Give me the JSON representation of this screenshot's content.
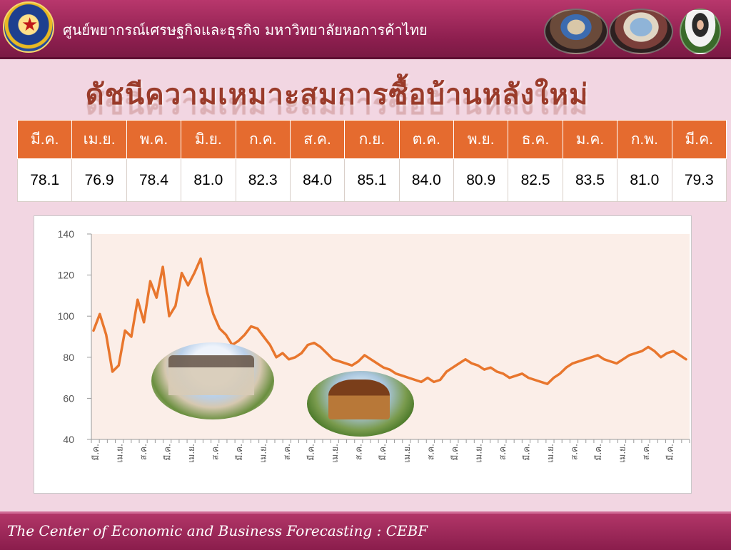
{
  "header": {
    "org_name": "ศูนย์พยากรณ์เศรษฐกิจและธุรกิจ มหาวิทยาลัยหอการค้าไทย"
  },
  "title": "ดัชนีความเหมาะสมการซื้อบ้านหลังใหม่",
  "table": {
    "months": [
      "มี.ค.",
      "เม.ย.",
      "พ.ค.",
      "มิ.ย.",
      "ก.ค.",
      "ส.ค.",
      "ก.ย.",
      "ต.ค.",
      "พ.ย.",
      "ธ.ค.",
      "ม.ค.",
      "ก.พ.",
      "มี.ค."
    ],
    "values": [
      "78.1",
      "76.9",
      "78.4",
      "81.0",
      "82.3",
      "84.0",
      "85.1",
      "84.0",
      "80.9",
      "82.5",
      "83.5",
      "81.0",
      "79.3"
    ]
  },
  "chart_data": {
    "type": "line",
    "ylim": [
      40,
      140
    ],
    "y_ticks": [
      "140",
      "120",
      "100",
      "80",
      "60",
      "40"
    ],
    "x_tick_labels": [
      "มี.ค.",
      "เม.ย.",
      "ส.ค.",
      "มี.ค.",
      "เม.ย.",
      "ส.ค.",
      "มี.ค.",
      "เม.ย.",
      "ส.ค.",
      "มี.ค.",
      "เม.ย.",
      "ส.ค.",
      "มี.ค.",
      "เม.ย.",
      "ส.ค.",
      "มี.ค.",
      "เม.ย.",
      "ส.ค.",
      "มี.ค.",
      "เม.ย.",
      "ส.ค.",
      "มี.ค.",
      "เม.ย.",
      "ส.ค.",
      "มี.ค."
    ],
    "series": [
      {
        "color": "#e8762d",
        "values": [
          93,
          101,
          91,
          73,
          76,
          93,
          90,
          108,
          97,
          117,
          109,
          124,
          100,
          105,
          121,
          115,
          121,
          128,
          112,
          101,
          94,
          91,
          86,
          88,
          91,
          95,
          94,
          90,
          86,
          80,
          82,
          79,
          80,
          82,
          86,
          87,
          85,
          82,
          79,
          78,
          77,
          76,
          78,
          81,
          79,
          77,
          75,
          74,
          72,
          71,
          70,
          69,
          68,
          70,
          68,
          69,
          73,
          75,
          77,
          79,
          77,
          76,
          74,
          75,
          73,
          72,
          70,
          71,
          72,
          70,
          69,
          68,
          67,
          70,
          72,
          75,
          77,
          78,
          79,
          80,
          81,
          79,
          78,
          77,
          79,
          81,
          82,
          83,
          85,
          83,
          80,
          82,
          83,
          81,
          79
        ]
      }
    ]
  },
  "footer": {
    "text": "The Center of Economic and Business Forecasting : CEBF"
  }
}
